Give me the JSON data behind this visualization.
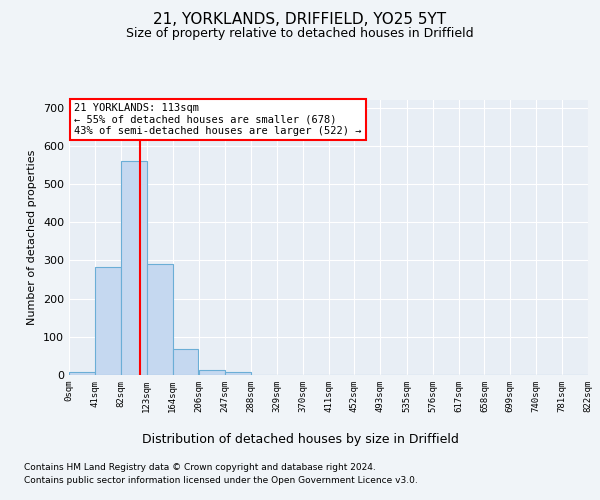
{
  "title1": "21, YORKLANDS, DRIFFIELD, YO25 5YT",
  "title2": "Size of property relative to detached houses in Driffield",
  "xlabel": "Distribution of detached houses by size in Driffield",
  "ylabel": "Number of detached properties",
  "bin_edges": [
    0,
    41,
    82,
    123,
    164,
    206,
    247,
    288,
    329,
    370,
    411,
    452,
    493,
    535,
    576,
    617,
    658,
    699,
    740,
    781,
    822
  ],
  "bar_heights": [
    7,
    283,
    560,
    290,
    68,
    13,
    9,
    0,
    0,
    0,
    0,
    0,
    0,
    0,
    0,
    0,
    0,
    0,
    0,
    0
  ],
  "bar_color": "#c5d8f0",
  "bar_edge_color": "#6baed6",
  "property_line_x": 113,
  "property_line_color": "red",
  "annotation_text": "21 YORKLANDS: 113sqm\n← 55% of detached houses are smaller (678)\n43% of semi-detached houses are larger (522) →",
  "annotation_box_color": "white",
  "annotation_box_edge_color": "red",
  "ylim": [
    0,
    720
  ],
  "yticks": [
    0,
    100,
    200,
    300,
    400,
    500,
    600,
    700
  ],
  "footer1": "Contains HM Land Registry data © Crown copyright and database right 2024.",
  "footer2": "Contains public sector information licensed under the Open Government Licence v3.0.",
  "bg_color": "#f0f4f8",
  "plot_bg_color": "#e8eef5",
  "grid_color": "white",
  "tick_labels": [
    "0sqm",
    "41sqm",
    "82sqm",
    "123sqm",
    "164sqm",
    "206sqm",
    "247sqm",
    "288sqm",
    "329sqm",
    "370sqm",
    "411sqm",
    "452sqm",
    "493sqm",
    "535sqm",
    "576sqm",
    "617sqm",
    "658sqm",
    "699sqm",
    "740sqm",
    "781sqm",
    "822sqm"
  ]
}
